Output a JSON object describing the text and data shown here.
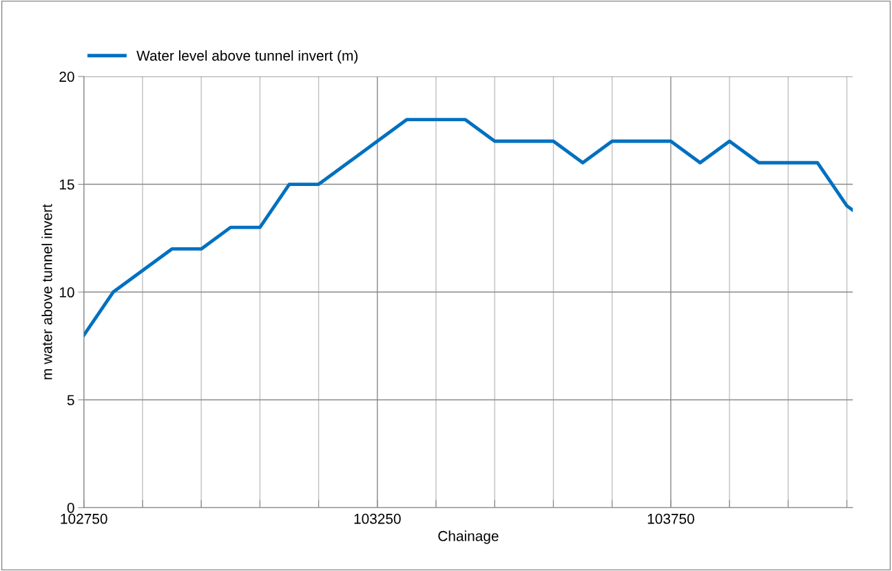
{
  "chart_data": {
    "type": "line",
    "xlabel": "Chainage",
    "ylabel": "m water above tunnel invert",
    "x": [
      102750,
      102800,
      102850,
      102900,
      102950,
      103000,
      103050,
      103100,
      103150,
      103200,
      103250,
      103300,
      103350,
      103400,
      103450,
      103500,
      103550,
      103600,
      103650,
      103700,
      103750,
      103800,
      103850,
      103900,
      103950,
      104000,
      104050,
      104060
    ],
    "series": [
      {
        "name": "Water level above tunnel invert (m)",
        "color": "#0070c0",
        "values": [
          8,
          10,
          11,
          12,
          12,
          13,
          13,
          15,
          15,
          16,
          17,
          18,
          18,
          18,
          17,
          17,
          17,
          16,
          17,
          17,
          17,
          16,
          17,
          16,
          16,
          16,
          14,
          13.8
        ]
      }
    ],
    "xlim": [
      102750,
      104060
    ],
    "xticks": [
      102750,
      {
        "value": 102850,
        "label": null
      },
      {
        "value": 102950,
        "label": null
      },
      {
        "value": 103050,
        "label": null
      },
      {
        "value": 103150,
        "label": null
      },
      103250,
      {
        "value": 103350,
        "label": null
      },
      {
        "value": 103450,
        "label": null
      },
      {
        "value": 103550,
        "label": null
      },
      {
        "value": 103650,
        "label": null
      },
      103750,
      {
        "value": 103850,
        "label": null
      },
      {
        "value": 103950,
        "label": null
      },
      {
        "value": 104050,
        "label": null
      }
    ],
    "ylim": [
      0,
      20
    ],
    "yticks": [
      0,
      5,
      10,
      15,
      20
    ],
    "grid": true,
    "legend": "top left",
    "marker": "none",
    "line_style": "solid"
  }
}
